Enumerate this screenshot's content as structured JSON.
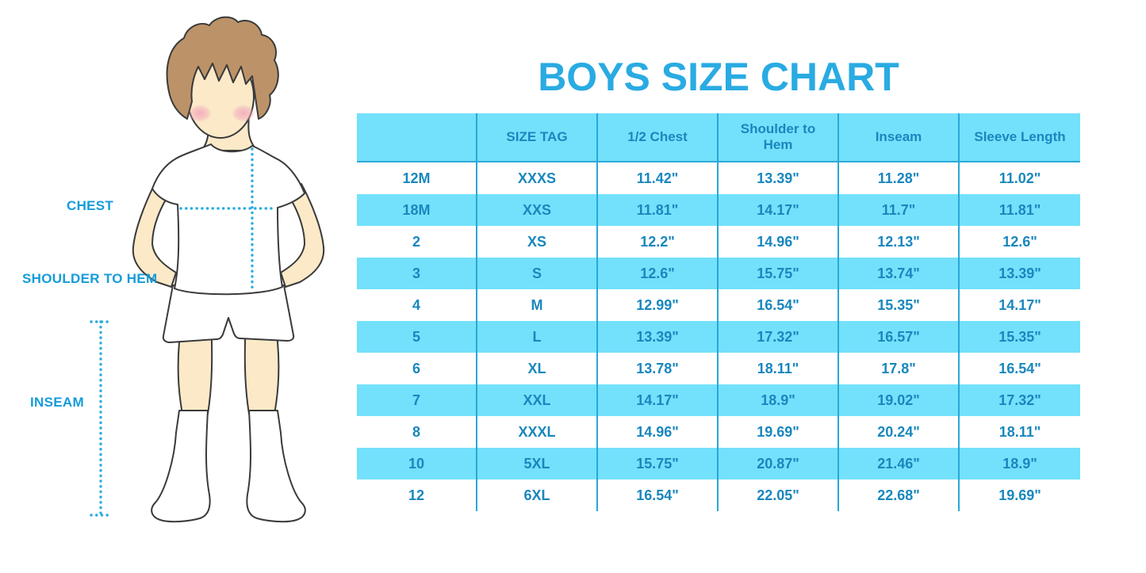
{
  "title": "BOYS SIZE CHART",
  "colors": {
    "title_blue": "#29ABE2",
    "table_text": "#1987BD",
    "stripe_bg": "#73E1FB",
    "divider": "#29A7D8",
    "header_edge": "#2FA9D6",
    "label_blue": "#149CDB",
    "dot_blue": "#29ABE2",
    "skin": "#FBE9C8",
    "hair": "#BC9368",
    "blush": "#F2A9BC",
    "outline": "#3A3A3A"
  },
  "figure": {
    "labels": {
      "chest": "CHEST",
      "shoulder_to_hem": "SHOULDER TO HEM",
      "inseam": "INSEAM"
    }
  },
  "chart_data": {
    "type": "table",
    "title": "BOYS SIZE CHART",
    "columns": [
      "",
      "SIZE TAG",
      "1/2 Chest",
      "Shoulder to Hem",
      "Inseam",
      "Sleeve Length"
    ],
    "rows": [
      [
        "12M",
        "XXXS",
        "11.42\"",
        "13.39\"",
        "11.28\"",
        "11.02\""
      ],
      [
        "18M",
        "XXS",
        "11.81\"",
        "14.17\"",
        "11.7\"",
        "11.81\""
      ],
      [
        "2",
        "XS",
        "12.2\"",
        "14.96\"",
        "12.13\"",
        "12.6\""
      ],
      [
        "3",
        "S",
        "12.6\"",
        "15.75\"",
        "13.74\"",
        "13.39\""
      ],
      [
        "4",
        "M",
        "12.99\"",
        "16.54\"",
        "15.35\"",
        "14.17\""
      ],
      [
        "5",
        "L",
        "13.39\"",
        "17.32\"",
        "16.57\"",
        "15.35\""
      ],
      [
        "6",
        "XL",
        "13.78\"",
        "18.11\"",
        "17.8\"",
        "16.54\""
      ],
      [
        "7",
        "XXL",
        "14.17\"",
        "18.9\"",
        "19.02\"",
        "17.32\""
      ],
      [
        "8",
        "XXXL",
        "14.96\"",
        "19.69\"",
        "20.24\"",
        "18.11\""
      ],
      [
        "10",
        "5XL",
        "15.75\"",
        "20.87\"",
        "21.46\"",
        "18.9\""
      ],
      [
        "12",
        "6XL",
        "16.54\"",
        "22.05\"",
        "22.68\"",
        "19.69\""
      ]
    ]
  }
}
